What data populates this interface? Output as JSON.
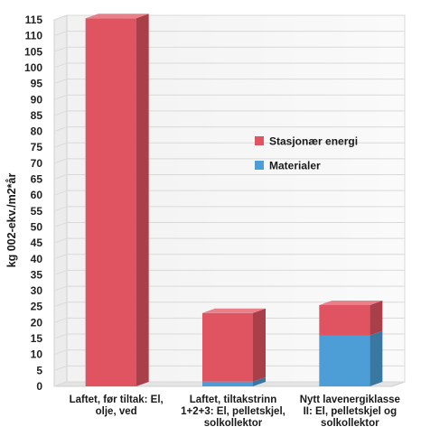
{
  "chart_data": {
    "type": "bar",
    "stacked": true,
    "three_d": true,
    "categories": [
      [
        "Laftet, før tiltak: El,",
        "olje, ved"
      ],
      [
        "Laftet, tiltakstrinn",
        "1+2+3: El, pelletskjel,",
        "solkollektor"
      ],
      [
        "Nytt lavenergiklasse",
        "II: El, pelletskjel og",
        "solkollektor"
      ]
    ],
    "series": [
      {
        "name": "Materialer",
        "color": "#4d9ed6",
        "values": [
          0,
          1.5,
          16
        ]
      },
      {
        "name": "Stasjonær energi",
        "color": "#e05461",
        "values": [
          115.5,
          21.5,
          9.5
        ]
      }
    ],
    "ylabel": "kg 002-ekv./m2*år",
    "ylim": [
      0,
      115
    ],
    "yticks": [
      0,
      5,
      10,
      15,
      20,
      25,
      30,
      35,
      40,
      45,
      50,
      55,
      60,
      65,
      70,
      75,
      80,
      85,
      90,
      95,
      100,
      105,
      110,
      115
    ],
    "legend_order": [
      "Stasjonær energi",
      "Materialer"
    ],
    "legend_position": "center-right",
    "grid": true
  }
}
